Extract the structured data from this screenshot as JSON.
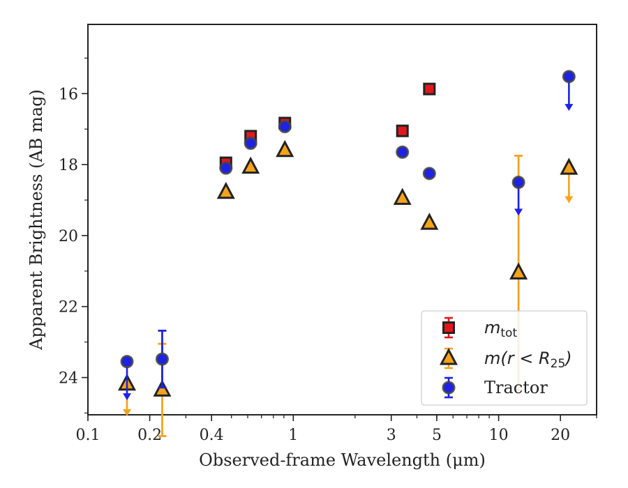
{
  "chart_data": {
    "type": "scatter",
    "xlabel": "Observed-frame Wavelength (μm)",
    "ylabel": "Apparent Brightness (AB mag)",
    "xscale": "log",
    "xlim": [
      0.1,
      30
    ],
    "ylim": [
      25.05,
      14.05
    ],
    "y_inverted": true,
    "x_ticks": [
      {
        "value": 0.1,
        "label": "0.1"
      },
      {
        "value": 0.2,
        "label": "0.2"
      },
      {
        "value": 0.4,
        "label": "0.4"
      },
      {
        "value": 1,
        "label": "1"
      },
      {
        "value": 3,
        "label": "3"
      },
      {
        "value": 5,
        "label": "5"
      },
      {
        "value": 10,
        "label": "10"
      },
      {
        "value": 20,
        "label": "20"
      }
    ],
    "y_ticks": [
      {
        "value": 16,
        "label": "16"
      },
      {
        "value": 18,
        "label": "18"
      },
      {
        "value": 20,
        "label": "20"
      },
      {
        "value": 22,
        "label": "22"
      },
      {
        "value": 24,
        "label": "24"
      }
    ],
    "grid": false,
    "legend_position": "lower-right",
    "series": [
      {
        "name": "m_tot",
        "legend_label": {
          "main": "m",
          "sub": "tot"
        },
        "marker": "square",
        "color": "#e0181d",
        "edge_color": "#222222",
        "error_color": "#e0181d",
        "points": [
          {
            "x": 0.47,
            "y": 17.95
          },
          {
            "x": 0.62,
            "y": 17.2
          },
          {
            "x": 0.91,
            "y": 16.83
          },
          {
            "x": 3.4,
            "y": 17.05
          },
          {
            "x": 4.6,
            "y": 15.87
          }
        ]
      },
      {
        "name": "m(r<R25)",
        "legend_label": {
          "main": "m(r < R",
          "sub": "25",
          "end": ")"
        },
        "marker": "triangle",
        "color": "#f5a31a",
        "edge_color": "#222222",
        "error_color": "#f5a31a",
        "points": [
          {
            "x": 0.155,
            "y": 24.18,
            "upper_limit": true,
            "limit_to": 25.05
          },
          {
            "x": 0.23,
            "y": 24.35,
            "err": 1.3
          },
          {
            "x": 0.47,
            "y": 18.78
          },
          {
            "x": 0.62,
            "y": 18.07
          },
          {
            "x": 0.91,
            "y": 17.6
          },
          {
            "x": 3.4,
            "y": 18.95
          },
          {
            "x": 4.6,
            "y": 19.65
          },
          {
            "x": 12.5,
            "y": 21.05,
            "err": 3.3
          },
          {
            "x": 22.0,
            "y": 18.1,
            "upper_limit": true,
            "limit_to": 19.05
          }
        ]
      },
      {
        "name": "Tractor",
        "legend_label": {
          "main": "Tractor"
        },
        "marker": "circle",
        "color": "#1d22e6",
        "edge_color": "#444444",
        "error_color": "#1d22e6",
        "points": [
          {
            "x": 0.155,
            "y": 23.55,
            "upper_limit": true,
            "limit_to": 24.6
          },
          {
            "x": 0.23,
            "y": 23.48,
            "err": 0.8
          },
          {
            "x": 0.47,
            "y": 18.1
          },
          {
            "x": 0.62,
            "y": 17.4
          },
          {
            "x": 0.91,
            "y": 16.93
          },
          {
            "x": 3.4,
            "y": 17.65
          },
          {
            "x": 4.6,
            "y": 18.25
          },
          {
            "x": 12.5,
            "y": 18.5,
            "upper_limit": true,
            "limit_to": 19.4
          },
          {
            "x": 22.0,
            "y": 15.52,
            "upper_limit": true,
            "limit_to": 16.45
          }
        ]
      }
    ]
  }
}
